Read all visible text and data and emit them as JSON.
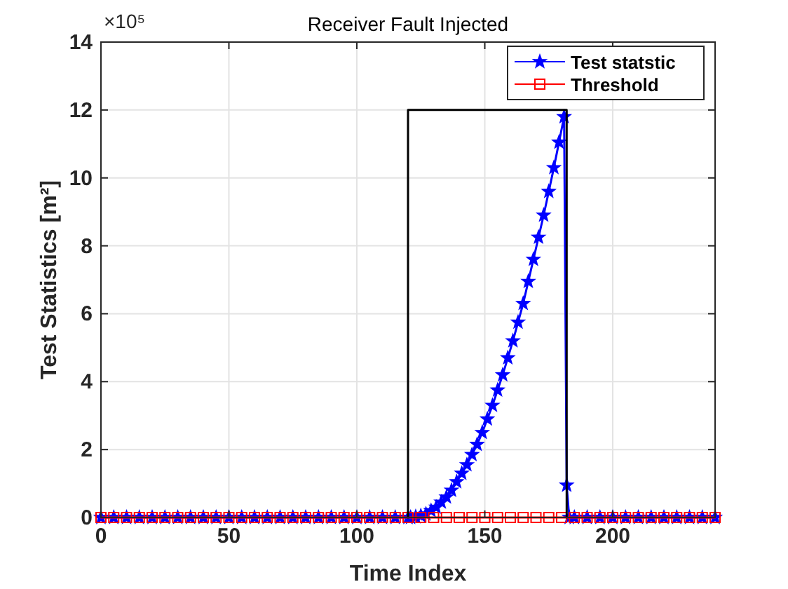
{
  "chart_data": {
    "type": "line",
    "title": "Receiver Fault Injected",
    "xlabel": "Time Index",
    "ylabel": "Test Statistics [m²]",
    "annotations": [
      "×10⁵"
    ],
    "xlim": [
      0,
      240
    ],
    "xticks": [
      0,
      50,
      100,
      150,
      200
    ],
    "ylim": [
      0,
      14
    ],
    "yticks": [
      0,
      2,
      4,
      6,
      8,
      10,
      12,
      14
    ],
    "grid": true,
    "legend": "top right",
    "series": [
      {
        "name": "Test statstic",
        "color": "#0000ff",
        "marker": "star",
        "x": [
          0,
          5,
          10,
          15,
          20,
          25,
          30,
          35,
          40,
          45,
          50,
          55,
          60,
          65,
          70,
          75,
          80,
          85,
          90,
          95,
          100,
          105,
          110,
          115,
          120,
          121,
          123,
          125,
          127,
          129,
          131,
          133,
          135,
          137,
          139,
          141,
          143,
          145,
          147,
          149,
          151,
          153,
          155,
          157,
          159,
          161,
          163,
          165,
          167,
          169,
          171,
          173,
          175,
          177,
          179,
          181,
          182,
          183,
          185,
          190,
          195,
          200,
          205,
          210,
          215,
          220,
          225,
          230,
          235,
          240
        ],
        "values": [
          0,
          0,
          0,
          0,
          0,
          0,
          0,
          0,
          0,
          0,
          0,
          0,
          0,
          0,
          0,
          0,
          0,
          0,
          0,
          0,
          0,
          0,
          0,
          0,
          0,
          0,
          0.02,
          0.05,
          0.1,
          0.2,
          0.3,
          0.45,
          0.6,
          0.8,
          1.05,
          1.3,
          1.55,
          1.85,
          2.15,
          2.5,
          2.9,
          3.3,
          3.75,
          4.2,
          4.7,
          5.2,
          5.75,
          6.3,
          6.95,
          7.6,
          8.25,
          8.9,
          9.6,
          10.3,
          11.05,
          11.8,
          0.95,
          0,
          0,
          0,
          0,
          0,
          0,
          0,
          0,
          0,
          0,
          0,
          0,
          0
        ]
      },
      {
        "name": "Threshold",
        "color": "#ff0000",
        "marker": "square",
        "x": [
          0,
          5,
          10,
          15,
          20,
          25,
          30,
          35,
          40,
          45,
          50,
          55,
          60,
          65,
          70,
          75,
          80,
          85,
          90,
          95,
          100,
          105,
          110,
          115,
          120,
          125,
          130,
          135,
          140,
          145,
          150,
          155,
          160,
          165,
          170,
          175,
          180,
          185,
          190,
          195,
          200,
          205,
          210,
          215,
          220,
          225,
          230,
          235,
          240
        ],
        "values": [
          0,
          0,
          0,
          0,
          0,
          0,
          0,
          0,
          0,
          0,
          0,
          0,
          0,
          0,
          0,
          0,
          0,
          0,
          0,
          0,
          0,
          0,
          0,
          0,
          0,
          0,
          0,
          0,
          0,
          0,
          0,
          0,
          0,
          0,
          0,
          0,
          0,
          0,
          0,
          0,
          0,
          0,
          0,
          0,
          0,
          0,
          0,
          0,
          0
        ]
      },
      {
        "color": "#000000",
        "marker": "none",
        "x": [
          120,
          120,
          182,
          182
        ],
        "values": [
          0,
          12,
          12,
          0
        ]
      }
    ]
  }
}
